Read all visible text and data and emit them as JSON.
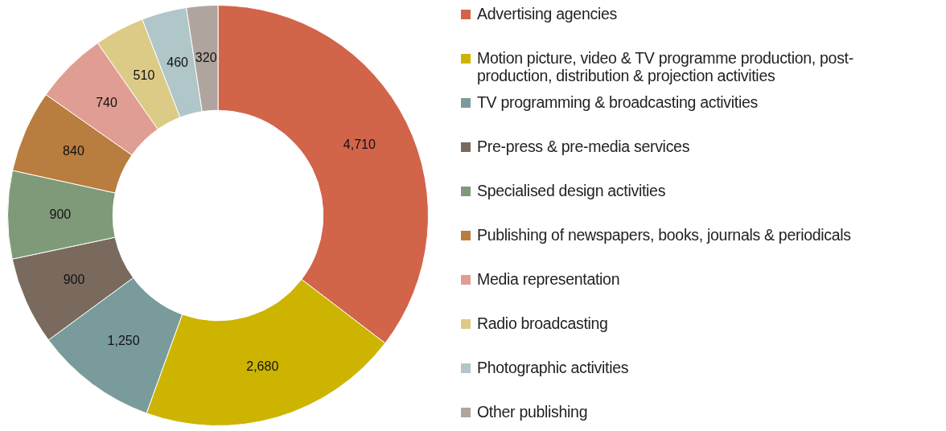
{
  "chart_data": {
    "type": "donut",
    "categories": [
      "Advertising agencies",
      "Motion picture, video & TV programme production, post-production, distribution & projection activities",
      "TV programming & broadcasting activities",
      "Pre-press & pre-media services",
      "Specialised design activities",
      "Publishing of newspapers, books, journals & periodicals",
      "Media representation",
      "Radio broadcasting",
      "Photographic activities",
      "Other publishing"
    ],
    "values": [
      4710,
      2680,
      1250,
      900,
      900,
      840,
      740,
      510,
      460,
      320
    ],
    "colors": [
      "#d2644a",
      "#cdb400",
      "#7a9b9b",
      "#7a6a5e",
      "#7f9a78",
      "#b97d3f",
      "#e09d93",
      "#dccb87",
      "#b0c6c8",
      "#b0a49e"
    ],
    "value_labels": [
      "4,710",
      "2,680",
      "1,250",
      "900",
      "900",
      "840",
      "740",
      "510",
      "460",
      "320"
    ],
    "legend": "right"
  }
}
